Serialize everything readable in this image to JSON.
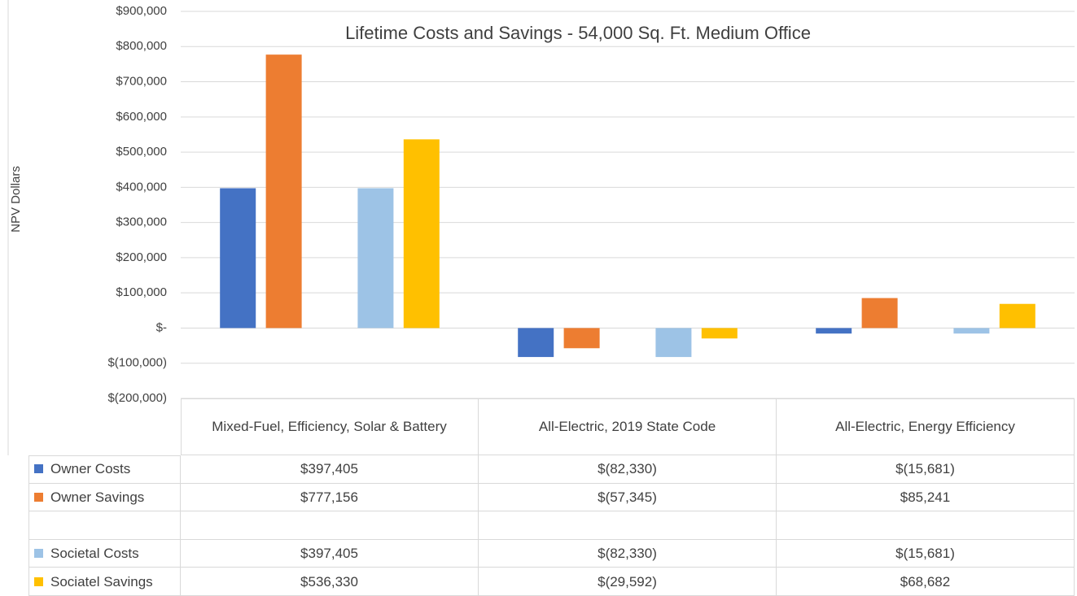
{
  "chart_data": {
    "type": "bar",
    "title": "Lifetime Costs and Savings - 54,000 Sq. Ft. Medium Office",
    "y_label": "NPV Dollars",
    "categories": [
      "Mixed-Fuel, Efficiency, Solar & Battery",
      "All-Electric, 2019 State Code",
      "All-Electric, Energy Efficiency"
    ],
    "series": [
      {
        "name": "Owner Costs",
        "color": "#4472c4",
        "values": [
          397405,
          -82330,
          -15681
        ],
        "value_labels": [
          "$397,405",
          "$(82,330)",
          "$(15,681)"
        ]
      },
      {
        "name": "Owner Savings",
        "color": "#ed7d31",
        "values": [
          777156,
          -57345,
          85241
        ],
        "value_labels": [
          "$777,156",
          "$(57,345)",
          "$85,241"
        ]
      },
      {
        "name": "Societal Costs",
        "color": "#9dc3e6",
        "values": [
          397405,
          -82330,
          -15681
        ],
        "value_labels": [
          "$397,405",
          "$(82,330)",
          "$(15,681)"
        ]
      },
      {
        "name": "Sociatel Savings",
        "color": "#ffc000",
        "values": [
          536330,
          -29592,
          68682
        ],
        "value_labels": [
          "$536,330",
          "$(29,592)",
          "$68,682"
        ]
      }
    ],
    "ylim": [
      -200000,
      900000
    ],
    "yticks": [
      {
        "value": -200000,
        "label": "$(200,000)"
      },
      {
        "value": -100000,
        "label": "$(100,000)"
      },
      {
        "value": 0,
        "label": "$-"
      },
      {
        "value": 100000,
        "label": "$100,000"
      },
      {
        "value": 200000,
        "label": "$200,000"
      },
      {
        "value": 300000,
        "label": "$300,000"
      },
      {
        "value": 400000,
        "label": "$400,000"
      },
      {
        "value": 500000,
        "label": "$500,000"
      },
      {
        "value": 600000,
        "label": "$600,000"
      },
      {
        "value": 700000,
        "label": "$700,000"
      },
      {
        "value": 800000,
        "label": "$800,000"
      },
      {
        "value": 900000,
        "label": "$900,000"
      }
    ],
    "grid": true
  }
}
